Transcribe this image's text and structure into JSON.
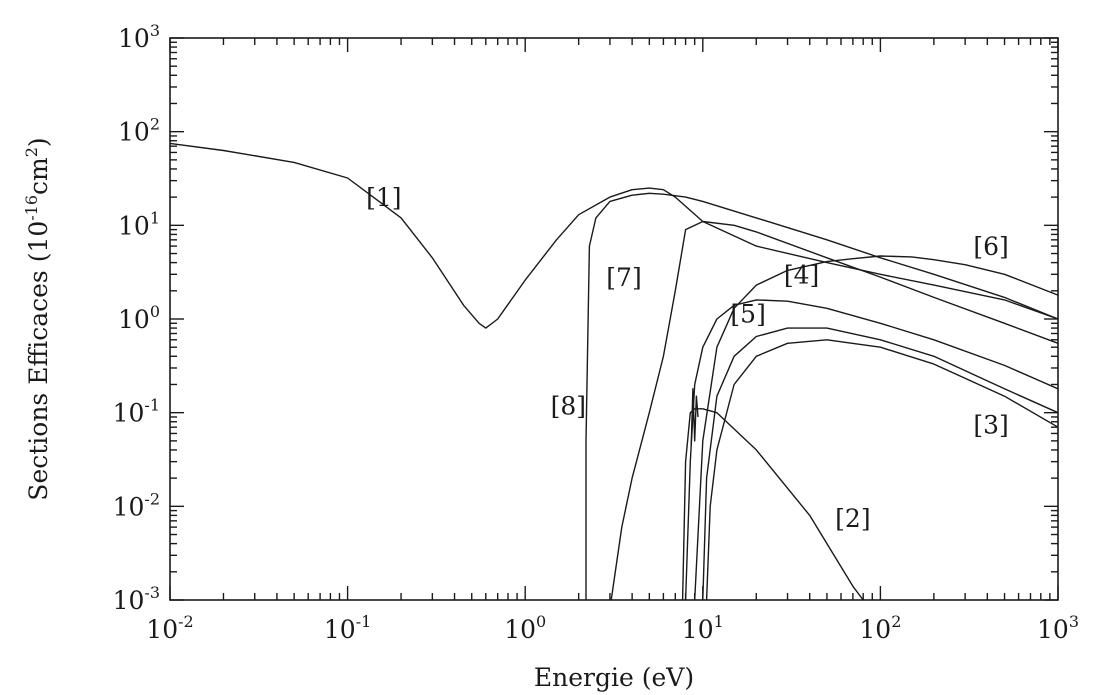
{
  "chart_data": {
    "type": "line",
    "xscale": "log",
    "yscale": "log",
    "xlim": [
      0.01,
      1000
    ],
    "ylim": [
      0.001,
      1000
    ],
    "grid": false,
    "xlabel": "Energie (eV)",
    "ylabel": "Sections Efficaces (10⁻¹⁶cm²)",
    "ylabel_parts": {
      "pre": "Sections Efficaces (10",
      "exp": "-16",
      "mid": "cm",
      "exp2": "2",
      "post": ")"
    },
    "xticks": [
      {
        "value": 0.01,
        "base": "10",
        "exp": "-2"
      },
      {
        "value": 0.1,
        "base": "10",
        "exp": "-1"
      },
      {
        "value": 1,
        "base": "10",
        "exp": "0"
      },
      {
        "value": 10,
        "base": "10",
        "exp": "1"
      },
      {
        "value": 100,
        "base": "10",
        "exp": "2"
      },
      {
        "value": 1000,
        "base": "10",
        "exp": "3"
      }
    ],
    "yticks": [
      {
        "value": 0.001,
        "base": "10",
        "exp": "-3"
      },
      {
        "value": 0.01,
        "base": "10",
        "exp": "-2"
      },
      {
        "value": 0.1,
        "base": "10",
        "exp": "-1"
      },
      {
        "value": 1,
        "base": "10",
        "exp": "0"
      },
      {
        "value": 10,
        "base": "10",
        "exp": "1"
      },
      {
        "value": 100,
        "base": "10",
        "exp": "2"
      },
      {
        "value": 1000,
        "base": "10",
        "exp": "3"
      }
    ],
    "series": [
      {
        "name": "[1]",
        "label_at": [
          0.16,
          20
        ],
        "x": [
          0.01,
          0.02,
          0.05,
          0.1,
          0.2,
          0.3,
          0.45,
          0.55,
          0.6,
          0.7,
          1.0,
          1.5,
          2.0,
          3.0,
          4.0,
          5.0,
          6.0,
          7.0,
          10,
          20,
          50,
          100,
          200,
          500,
          1000
        ],
        "y": [
          75,
          63,
          47,
          32,
          12,
          4.5,
          1.4,
          0.9,
          0.8,
          1.0,
          2.6,
          7,
          13,
          20,
          24,
          25,
          24,
          20,
          11,
          6,
          4,
          3.0,
          2.3,
          1.6,
          1.0
        ]
      },
      {
        "name": "[2]",
        "label_at": [
          70,
          0.0075
        ],
        "x": [
          7.7,
          8.0,
          8.5,
          9.0,
          10,
          12,
          20,
          40,
          70,
          80
        ],
        "y": [
          0.001,
          0.03,
          0.1,
          0.11,
          0.11,
          0.1,
          0.04,
          0.008,
          0.0014,
          0.001
        ],
        "spike": {
          "x": [
            8.6,
            8.8,
            9.0,
            9.2,
            9.4
          ],
          "y": [
            0.045,
            0.18,
            0.05,
            0.15,
            0.09
          ]
        }
      },
      {
        "name": "[3]",
        "label_at": [
          420,
          0.075
        ],
        "x": [
          10.5,
          11,
          12,
          15,
          20,
          30,
          50,
          100,
          200,
          500,
          1000
        ],
        "y": [
          0.001,
          0.01,
          0.04,
          0.2,
          0.4,
          0.55,
          0.6,
          0.5,
          0.33,
          0.15,
          0.07
        ]
      },
      {
        "name": "[4]",
        "label_at": [
          36,
          3.0
        ],
        "x": [
          10.0,
          10.5,
          12,
          15,
          20,
          30,
          50,
          100,
          200,
          500,
          1000
        ],
        "y": [
          0.001,
          0.02,
          0.15,
          0.4,
          0.65,
          0.8,
          0.8,
          0.6,
          0.4,
          0.18,
          0.1
        ]
      },
      {
        "name": "[5]",
        "label_at": [
          18,
          1.15
        ],
        "x": [
          8.0,
          8.5,
          9.0,
          10,
          12,
          15,
          20,
          30,
          50,
          100,
          200,
          500,
          1000
        ],
        "y": [
          0.001,
          0.03,
          0.2,
          0.5,
          1.0,
          1.4,
          1.6,
          1.55,
          1.3,
          0.9,
          0.6,
          0.32,
          0.18
        ]
      },
      {
        "name": "[6]",
        "label_at": [
          420,
          6.0
        ],
        "x": [
          9.0,
          10,
          12,
          15,
          20,
          30,
          50,
          70,
          100,
          150,
          200,
          300,
          500,
          1000
        ],
        "y": [
          0.001,
          0.05,
          0.5,
          1.3,
          2.3,
          3.3,
          4.1,
          4.4,
          4.7,
          4.6,
          4.3,
          3.8,
          3.0,
          1.8
        ]
      },
      {
        "name": "[7]",
        "label_at": [
          3.6,
          2.8
        ],
        "x": [
          3.05,
          3.5,
          4.0,
          5.0,
          6.0,
          7.0,
          8.0,
          10,
          15,
          20,
          50,
          100,
          200,
          500,
          1000
        ],
        "y": [
          0.001,
          0.006,
          0.02,
          0.1,
          0.4,
          2.0,
          9.0,
          11,
          10,
          8.5,
          4.5,
          2.8,
          1.7,
          0.9,
          0.55
        ]
      },
      {
        "name": "[8]",
        "label_at": [
          1.75,
          0.12
        ],
        "x": [
          2.2,
          2.2,
          2.3,
          2.5,
          3.0,
          4.0,
          5.0,
          6.0,
          8.0,
          10,
          20,
          50,
          100,
          200,
          500,
          1000
        ],
        "y": [
          0.001,
          0.05,
          6,
          12,
          18,
          21,
          22,
          21.5,
          20,
          18,
          12,
          7,
          4.5,
          3.0,
          1.7,
          1.0
        ]
      }
    ]
  }
}
